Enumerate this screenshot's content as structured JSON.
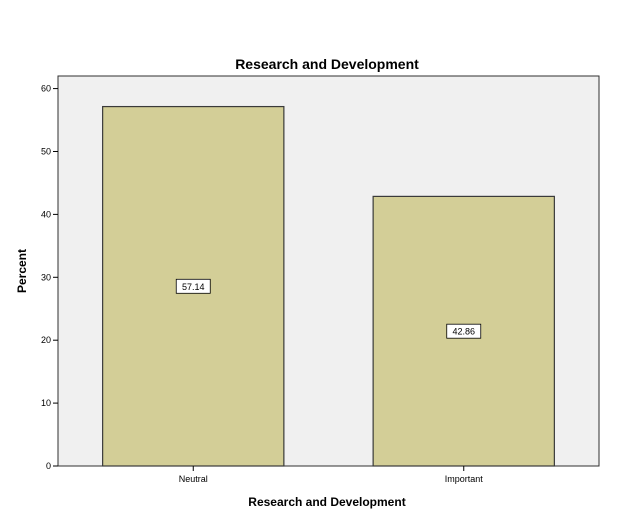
{
  "chart_data": {
    "type": "bar",
    "title": "Research and Development",
    "xlabel": "Research and Development",
    "ylabel": "Percent",
    "categories": [
      "Neutral",
      "Important"
    ],
    "values": [
      57.14,
      42.86
    ],
    "data_labels": [
      "57.14",
      "42.86"
    ],
    "ylim": [
      0,
      62
    ],
    "yticks": [
      0,
      10,
      20,
      30,
      40,
      50,
      60
    ],
    "ytick_labels": [
      "0",
      "10",
      "20",
      "30",
      "40",
      "50",
      "60"
    ],
    "grid": false,
    "legend": "none",
    "colors": {
      "bar_fill": "#d3ce97",
      "bar_stroke": "#3a3a3a",
      "plot_background": "#f0f0f0",
      "plot_border": "#2f2f2f",
      "label_box_fill": "#ffffff"
    }
  }
}
